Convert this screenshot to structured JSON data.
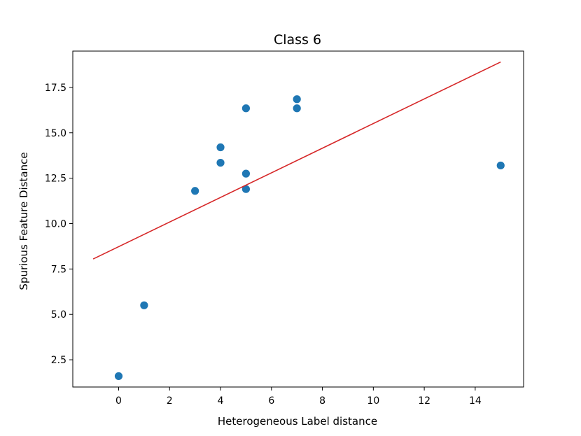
{
  "chart_data": {
    "type": "scatter",
    "title": "Class 6",
    "xlabel": "Heterogeneous Label distance",
    "ylabel": "Spurious Feature Distance",
    "xlim": [
      -1.8,
      15.9
    ],
    "ylim": [
      1.0,
      19.5
    ],
    "xticks": [
      0,
      2,
      4,
      6,
      8,
      10,
      12,
      14
    ],
    "yticks": [
      2.5,
      5.0,
      7.5,
      10.0,
      12.5,
      15.0,
      17.5
    ],
    "xtick_labels": [
      "0",
      "2",
      "4",
      "6",
      "8",
      "10",
      "12",
      "14"
    ],
    "ytick_labels": [
      "2.5",
      "5.0",
      "7.5",
      "10.0",
      "12.5",
      "15.0",
      "17.5"
    ],
    "grid": false,
    "series": [
      {
        "kind": "scatter",
        "color": "#1f77b4",
        "points": [
          {
            "x": 0,
            "y": 1.6
          },
          {
            "x": 1,
            "y": 5.5
          },
          {
            "x": 3,
            "y": 11.8
          },
          {
            "x": 4,
            "y": 14.2
          },
          {
            "x": 4,
            "y": 13.35
          },
          {
            "x": 5,
            "y": 16.35
          },
          {
            "x": 5,
            "y": 12.75
          },
          {
            "x": 5,
            "y": 11.9
          },
          {
            "x": 7,
            "y": 16.85
          },
          {
            "x": 7,
            "y": 16.35
          },
          {
            "x": 15,
            "y": 13.2
          }
        ]
      },
      {
        "kind": "line",
        "color": "#d62728",
        "points": [
          {
            "x": -1,
            "y": 8.05
          },
          {
            "x": 15,
            "y": 18.9
          }
        ]
      }
    ]
  }
}
